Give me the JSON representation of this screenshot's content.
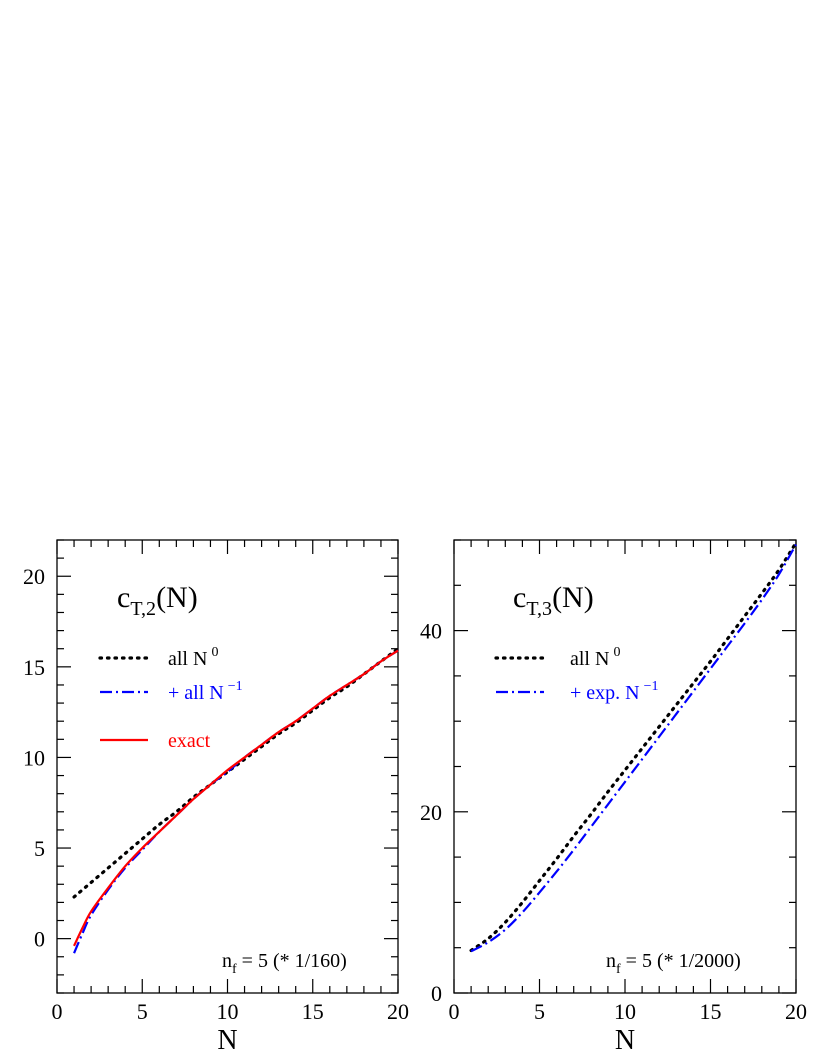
{
  "chart_data": [
    {
      "type": "line",
      "title": "c_{T,2}(N)",
      "title_main": "c",
      "title_sub": "T,2",
      "title_args": "(N)",
      "xlabel": "N",
      "ylabel": "",
      "xlim": [
        0,
        20
      ],
      "ylim": [
        -3,
        22
      ],
      "xticks": [
        0,
        5,
        10,
        15,
        20
      ],
      "yticks": [
        0,
        5,
        10,
        15,
        20
      ],
      "note": "n_f = 5 (* 1/160)",
      "note_main": "n",
      "note_sub": "f",
      "note_rest": " = 5  (* 1/160)",
      "legend_position": "upper-left",
      "series": [
        {
          "name": "all N^0",
          "legend_main": "all N",
          "legend_sup": "0",
          "color": "#000000",
          "style": "dotted",
          "x": [
            1,
            2,
            3,
            4,
            5,
            6,
            7,
            8,
            9,
            10,
            11,
            12,
            13,
            14,
            15,
            16,
            17,
            18,
            19,
            20
          ],
          "y": [
            2.3,
            3.1,
            3.9,
            4.7,
            5.5,
            6.3,
            7.0,
            7.8,
            8.5,
            9.2,
            9.9,
            10.6,
            11.3,
            11.9,
            12.6,
            13.3,
            13.9,
            14.6,
            15.3,
            16.0
          ]
        },
        {
          "name": "+ all N^-1",
          "legend_main": "+ all N",
          "legend_sup": "−1",
          "color": "#0000ff",
          "style": "dashdot",
          "x": [
            1,
            1.5,
            2,
            3,
            4,
            5,
            6,
            7,
            8,
            9,
            10,
            11,
            12,
            13,
            14,
            15,
            16,
            17,
            18,
            19,
            20
          ],
          "y": [
            -0.8,
            0.3,
            1.3,
            2.7,
            3.9,
            4.9,
            5.9,
            6.8,
            7.7,
            8.5,
            9.2,
            10.0,
            10.7,
            11.4,
            12.0,
            12.7,
            13.4,
            14.0,
            14.6,
            15.3,
            15.9
          ]
        },
        {
          "name": "exact",
          "legend_main": "exact",
          "legend_sup": "",
          "color": "#ff0000",
          "style": "solid",
          "x": [
            1,
            1.5,
            2,
            3,
            4,
            5,
            6,
            7,
            8,
            9,
            10,
            11,
            12,
            13,
            14,
            15,
            16,
            17,
            18,
            19,
            20
          ],
          "y": [
            -0.4,
            0.6,
            1.5,
            2.8,
            4.0,
            5.0,
            5.9,
            6.8,
            7.7,
            8.5,
            9.3,
            10.0,
            10.7,
            11.4,
            12.0,
            12.7,
            13.4,
            14.0,
            14.6,
            15.3,
            15.9
          ]
        }
      ]
    },
    {
      "type": "line",
      "title": "c_{T,3}(N)",
      "title_main": "c",
      "title_sub": "T,3",
      "title_args": "(N)",
      "xlabel": "N",
      "ylabel": "",
      "xlim": [
        0,
        20
      ],
      "ylim": [
        0,
        50
      ],
      "xticks": [
        0,
        5,
        10,
        15,
        20
      ],
      "yticks": [
        0,
        20,
        40
      ],
      "note": "n_f = 5 (* 1/2000)",
      "note_main": "n",
      "note_sub": "f",
      "note_rest": " = 5  (* 1/2000)",
      "legend_position": "upper-left",
      "series": [
        {
          "name": "all N^0",
          "legend_main": "all N",
          "legend_sup": "0",
          "color": "#000000",
          "style": "dotted",
          "x": [
            1,
            2,
            3,
            4,
            5,
            6,
            7,
            8,
            9,
            10,
            11,
            12,
            13,
            14,
            15,
            16,
            17,
            18,
            19,
            20
          ],
          "y": [
            4.7,
            6.0,
            7.8,
            10.0,
            12.4,
            14.8,
            17.3,
            19.7,
            22.2,
            24.6,
            27.0,
            29.4,
            31.8,
            34.2,
            36.6,
            39.1,
            41.6,
            44.1,
            46.7,
            49.7
          ]
        },
        {
          "name": "+ exp. N^-1",
          "legend_main": "+ exp. N",
          "legend_sup": "−1",
          "color": "#0000ff",
          "style": "dashdot",
          "x": [
            1,
            2,
            3,
            4,
            5,
            6,
            7,
            8,
            9,
            10,
            11,
            12,
            13,
            14,
            15,
            16,
            17,
            18,
            19,
            20
          ],
          "y": [
            4.6,
            5.6,
            7.0,
            8.9,
            11.1,
            13.4,
            15.8,
            18.3,
            20.8,
            23.3,
            25.8,
            28.3,
            30.8,
            33.3,
            35.8,
            38.3,
            40.8,
            43.4,
            46.2,
            49.5
          ]
        }
      ]
    }
  ]
}
